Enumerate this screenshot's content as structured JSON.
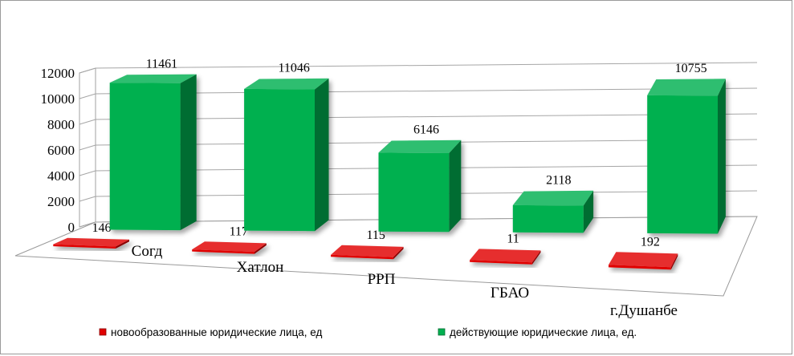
{
  "chart_data": {
    "type": "bar",
    "title": "",
    "xlabel": "",
    "ylabel": "",
    "categories": [
      "Согд",
      "Хатлон",
      "РРП",
      "ГБАО",
      "г.Душанбе"
    ],
    "series": [
      {
        "name": "новообразованные юридические лица, ед",
        "values": [
          146,
          117,
          115,
          11,
          192
        ],
        "color": "#e00000"
      },
      {
        "name": "действующие юридические лица, ед.",
        "values": [
          11461,
          11046,
          6146,
          2118,
          10755
        ],
        "color": "#00b050"
      }
    ],
    "ylim": [
      0,
      12000
    ],
    "yticks": [
      0,
      2000,
      4000,
      6000,
      8000,
      10000,
      12000
    ],
    "grid": true,
    "legend": "bottom",
    "style": "3d-column"
  }
}
